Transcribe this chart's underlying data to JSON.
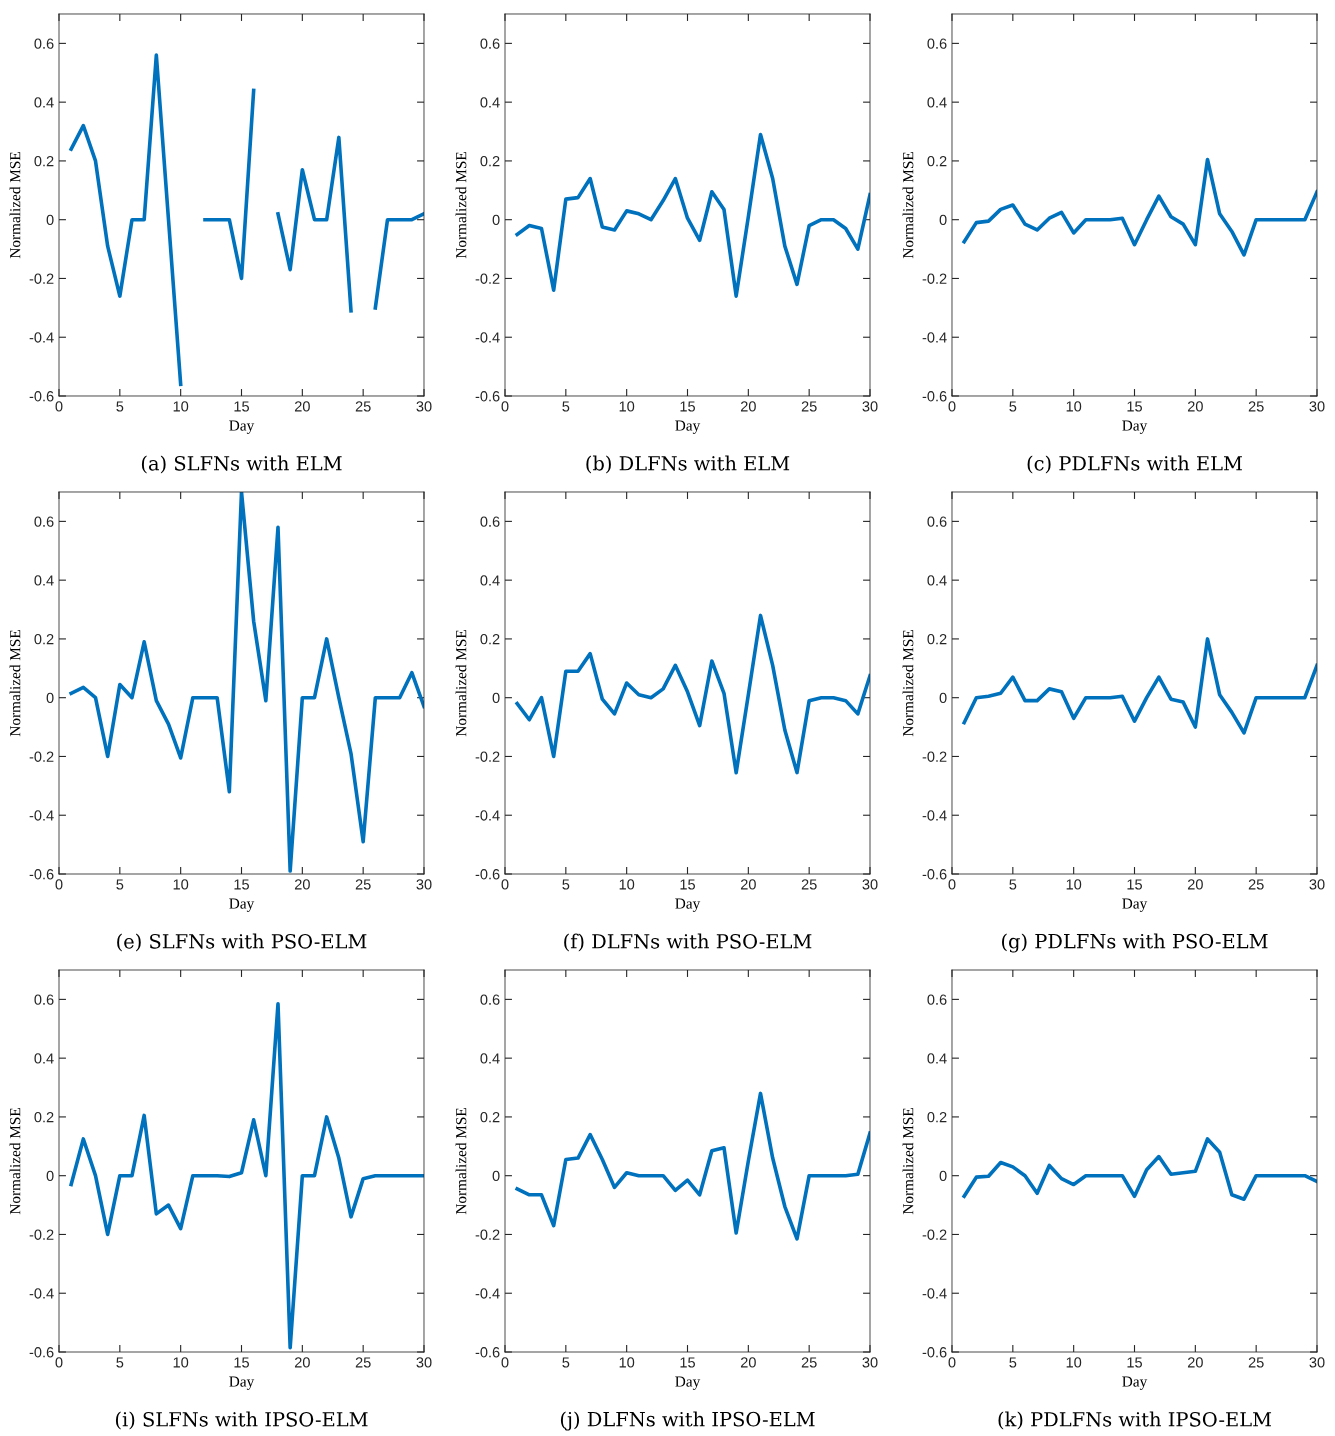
{
  "chart_data": [
    {
      "type": "line",
      "title": "(a) SLFNs with ELM",
      "xlabel": "Day",
      "ylabel": "Normalized MSE",
      "xlim": [
        0,
        30
      ],
      "xticks": [
        0,
        5,
        10,
        15,
        20,
        25,
        30
      ],
      "ylim": [
        -0.6,
        0.7
      ],
      "yticks": [
        -0.6,
        -0.4,
        -0.2,
        0,
        0.2,
        0.4,
        0.6
      ],
      "x": [
        1,
        2,
        3,
        4,
        5,
        6,
        7,
        8,
        9,
        10,
        11,
        12,
        13,
        14,
        15,
        16,
        17,
        18,
        19,
        20,
        21,
        22,
        23,
        24,
        25,
        26,
        27,
        28,
        29,
        30
      ],
      "series": [
        {
          "color": "#0072bd",
          "values": [
            0.24,
            0.32,
            0.2,
            -0.09,
            -0.26,
            0,
            0,
            0.56,
            0,
            -0.56,
            null,
            0,
            0,
            0,
            -0.2,
            0.44,
            null,
            0.02,
            -0.17,
            0.17,
            0,
            0,
            0.28,
            -0.31,
            null,
            -0.3,
            0,
            0,
            0,
            0.02
          ]
        }
      ]
    },
    {
      "type": "line",
      "title": "(b) DLFNs with ELM",
      "xlabel": "Day",
      "ylabel": "Normalized MSE",
      "xlim": [
        0,
        30
      ],
      "xticks": [
        0,
        5,
        10,
        15,
        20,
        25,
        30
      ],
      "ylim": [
        -0.6,
        0.7
      ],
      "yticks": [
        -0.6,
        -0.4,
        -0.2,
        0,
        0.2,
        0.4,
        0.6
      ],
      "x": [
        1,
        2,
        3,
        4,
        5,
        6,
        7,
        8,
        9,
        10,
        11,
        12,
        13,
        14,
        15,
        16,
        17,
        18,
        19,
        20,
        21,
        22,
        23,
        24,
        25,
        26,
        27,
        28,
        29,
        30
      ],
      "series": [
        {
          "color": "#0072bd",
          "values": [
            -0.05,
            -0.02,
            -0.03,
            -0.24,
            0.07,
            0.075,
            0.14,
            -0.025,
            -0.035,
            0.03,
            0.02,
            0,
            0.065,
            0.14,
            0.005,
            -0.07,
            0.095,
            0.035,
            -0.26,
            0.01,
            0.29,
            0.14,
            -0.09,
            -0.22,
            -0.02,
            0,
            0,
            -0.03,
            -0.1,
            0.085
          ]
        }
      ]
    },
    {
      "type": "line",
      "title": "(c) PDLFNs with ELM",
      "xlabel": "Day",
      "ylabel": "Normalized MSE",
      "xlim": [
        0,
        30
      ],
      "xticks": [
        0,
        5,
        10,
        15,
        20,
        25,
        30
      ],
      "ylim": [
        -0.6,
        0.7
      ],
      "yticks": [
        -0.6,
        -0.4,
        -0.2,
        0,
        0.2,
        0.4,
        0.6
      ],
      "x": [
        1,
        2,
        3,
        4,
        5,
        6,
        7,
        8,
        9,
        10,
        11,
        12,
        13,
        14,
        15,
        16,
        17,
        18,
        19,
        20,
        21,
        22,
        23,
        24,
        25,
        26,
        27,
        28,
        29,
        30
      ],
      "series": [
        {
          "color": "#0072bd",
          "values": [
            -0.075,
            -0.01,
            -0.005,
            0.035,
            0.05,
            -0.015,
            -0.035,
            0.005,
            0.025,
            -0.045,
            0,
            0,
            0,
            0.005,
            -0.085,
            0,
            0.08,
            0.01,
            -0.015,
            -0.085,
            0.205,
            0.02,
            -0.04,
            -0.12,
            0,
            0,
            0,
            0,
            0,
            0.095
          ]
        }
      ]
    },
    {
      "type": "line",
      "title": "(e) SLFNs with PSO-ELM",
      "xlabel": "Day",
      "ylabel": "Normalized MSE",
      "xlim": [
        0,
        30
      ],
      "xticks": [
        0,
        5,
        10,
        15,
        20,
        25,
        30
      ],
      "ylim": [
        -0.6,
        0.7
      ],
      "yticks": [
        -0.6,
        -0.4,
        -0.2,
        0,
        0.2,
        0.4,
        0.6
      ],
      "x": [
        1,
        2,
        3,
        4,
        5,
        6,
        7,
        8,
        9,
        10,
        11,
        12,
        13,
        14,
        15,
        16,
        17,
        18,
        19,
        20,
        21,
        22,
        23,
        24,
        25,
        26,
        27,
        28,
        29,
        30
      ],
      "series": [
        {
          "color": "#0072bd",
          "values": [
            0.015,
            0.035,
            0,
            -0.2,
            0.045,
            0,
            0.19,
            -0.01,
            -0.09,
            -0.205,
            0,
            0,
            0,
            -0.32,
            0.7,
            0.26,
            -0.01,
            0.58,
            -0.59,
            0,
            0,
            0.2,
            0,
            -0.19,
            -0.49,
            0,
            0,
            0,
            0.085,
            -0.03
          ]
        }
      ]
    },
    {
      "type": "line",
      "title": "(f) DLFNs with PSO-ELM",
      "xlabel": "Day",
      "ylabel": "Normalized MSE",
      "xlim": [
        0,
        30
      ],
      "xticks": [
        0,
        5,
        10,
        15,
        20,
        25,
        30
      ],
      "ylim": [
        -0.6,
        0.7
      ],
      "yticks": [
        -0.6,
        -0.4,
        -0.2,
        0,
        0.2,
        0.4,
        0.6
      ],
      "x": [
        1,
        2,
        3,
        4,
        5,
        6,
        7,
        8,
        9,
        10,
        11,
        12,
        13,
        14,
        15,
        16,
        17,
        18,
        19,
        20,
        21,
        22,
        23,
        24,
        25,
        26,
        27,
        28,
        29,
        30
      ],
      "series": [
        {
          "color": "#0072bd",
          "values": [
            -0.02,
            -0.075,
            0,
            -0.2,
            0.09,
            0.09,
            0.15,
            -0.005,
            -0.055,
            0.05,
            0.01,
            0,
            0.03,
            0.11,
            0.02,
            -0.095,
            0.125,
            0.015,
            -0.255,
            0.01,
            0.28,
            0.11,
            -0.11,
            -0.255,
            -0.01,
            0,
            0,
            -0.01,
            -0.055,
            0.075
          ]
        }
      ]
    },
    {
      "type": "line",
      "title": "(g) PDLFNs with PSO-ELM",
      "xlabel": "Day",
      "ylabel": "Normalized MSE",
      "xlim": [
        0,
        30
      ],
      "xticks": [
        0,
        5,
        10,
        15,
        20,
        25,
        30
      ],
      "ylim": [
        -0.6,
        0.7
      ],
      "yticks": [
        -0.6,
        -0.4,
        -0.2,
        0,
        0.2,
        0.4,
        0.6
      ],
      "x": [
        1,
        2,
        3,
        4,
        5,
        6,
        7,
        8,
        9,
        10,
        11,
        12,
        13,
        14,
        15,
        16,
        17,
        18,
        19,
        20,
        21,
        22,
        23,
        24,
        25,
        26,
        27,
        28,
        29,
        30
      ],
      "series": [
        {
          "color": "#0072bd",
          "values": [
            -0.085,
            0,
            0.005,
            0.015,
            0.07,
            -0.01,
            -0.01,
            0.03,
            0.02,
            -0.07,
            0,
            0,
            0,
            0.005,
            -0.08,
            0,
            0.07,
            -0.005,
            -0.015,
            -0.1,
            0.2,
            0.01,
            -0.05,
            -0.12,
            0,
            0,
            0,
            0,
            0,
            0.11
          ]
        }
      ]
    },
    {
      "type": "line",
      "title": "(i) SLFNs with IPSO-ELM",
      "xlabel": "Day",
      "ylabel": "Normalized MSE",
      "xlim": [
        0,
        30
      ],
      "xticks": [
        0,
        5,
        10,
        15,
        20,
        25,
        30
      ],
      "ylim": [
        -0.6,
        0.7
      ],
      "yticks": [
        -0.6,
        -0.4,
        -0.2,
        0,
        0.2,
        0.4,
        0.6
      ],
      "x": [
        1,
        2,
        3,
        4,
        5,
        6,
        7,
        8,
        9,
        10,
        11,
        12,
        13,
        14,
        15,
        16,
        17,
        18,
        19,
        20,
        21,
        22,
        23,
        24,
        25,
        26,
        27,
        28,
        29,
        30
      ],
      "series": [
        {
          "color": "#0072bd",
          "values": [
            -0.03,
            0.125,
            0,
            -0.2,
            0,
            0,
            0.205,
            -0.13,
            -0.1,
            -0.18,
            0,
            0,
            0,
            -0.003,
            0.01,
            0.19,
            0,
            0.585,
            -0.585,
            0,
            0,
            0.2,
            0.06,
            -0.14,
            -0.01,
            0,
            0,
            0,
            0,
            0
          ]
        }
      ]
    },
    {
      "type": "line",
      "title": "(j) DLFNs with IPSO-ELM",
      "xlabel": "Day",
      "ylabel": "Normalized MSE",
      "xlim": [
        0,
        30
      ],
      "xticks": [
        0,
        5,
        10,
        15,
        20,
        25,
        30
      ],
      "ylim": [
        -0.6,
        0.7
      ],
      "yticks": [
        -0.6,
        -0.4,
        -0.2,
        0,
        0.2,
        0.4,
        0.6
      ],
      "x": [
        1,
        2,
        3,
        4,
        5,
        6,
        7,
        8,
        9,
        10,
        11,
        12,
        13,
        14,
        15,
        16,
        17,
        18,
        19,
        20,
        21,
        22,
        23,
        24,
        25,
        26,
        27,
        28,
        29,
        30
      ],
      "series": [
        {
          "color": "#0072bd",
          "values": [
            -0.045,
            -0.065,
            -0.065,
            -0.17,
            0.055,
            0.06,
            0.14,
            0.055,
            -0.04,
            0.01,
            0,
            0,
            0,
            -0.05,
            -0.015,
            -0.065,
            0.085,
            0.095,
            -0.195,
            0.05,
            0.28,
            0.06,
            -0.105,
            -0.215,
            0,
            0,
            0,
            0,
            0.005,
            0.145
          ]
        }
      ]
    },
    {
      "type": "line",
      "title": "(k) PDLFNs with IPSO-ELM",
      "xlabel": "Day",
      "ylabel": "Normalized MSE",
      "xlim": [
        0,
        30
      ],
      "xticks": [
        0,
        5,
        10,
        15,
        20,
        25,
        30
      ],
      "ylim": [
        -0.6,
        0.7
      ],
      "yticks": [
        -0.6,
        -0.4,
        -0.2,
        0,
        0.2,
        0.4,
        0.6
      ],
      "x": [
        1,
        2,
        3,
        4,
        5,
        6,
        7,
        8,
        9,
        10,
        11,
        12,
        13,
        14,
        15,
        16,
        17,
        18,
        19,
        20,
        21,
        22,
        23,
        24,
        25,
        26,
        27,
        28,
        29,
        30
      ],
      "series": [
        {
          "color": "#0072bd",
          "values": [
            -0.07,
            -0.005,
            -0.002,
            0.045,
            0.03,
            0,
            -0.06,
            0.035,
            -0.01,
            -0.03,
            0,
            0,
            0,
            0,
            -0.07,
            0.02,
            0.065,
            0.005,
            0.01,
            0.015,
            0.125,
            0.08,
            -0.065,
            -0.08,
            0,
            0,
            0,
            0,
            0,
            -0.02
          ]
        }
      ]
    }
  ]
}
